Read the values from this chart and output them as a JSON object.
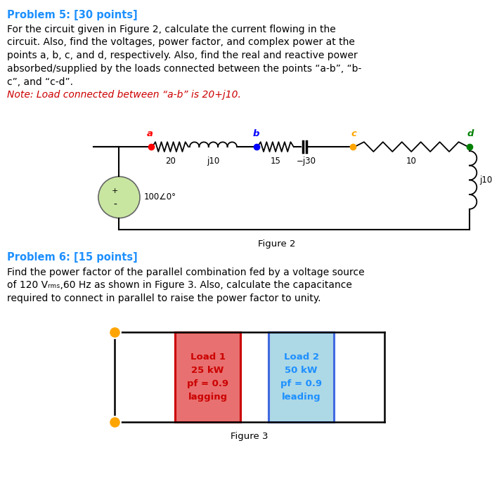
{
  "title_p5": "Problem 5: [30 points]",
  "title_p6": "Problem 6: [15 points]",
  "title_color": "#1E90FF",
  "text_color": "#000000",
  "p5_line1": "For the circuit given in Figure 2, calculate the current flowing in the",
  "p5_line2": "circuit. Also, find the voltages, power factor, and complex power at the",
  "p5_line3": "points a, b, c, and d, respectively. Also, find the real and reactive power",
  "p5_line4": "absorbed/supplied by the loads connected between the points “a-b”, “b-",
  "p5_line5": "c”, and “c-d”.",
  "p5_note": "Note: Load connected between “a-b” is 20+j10.",
  "p6_line1": "Find the power factor of the parallel combination fed by a voltage source",
  "p6_line2": "of 120 Vᵣₘₛ,60 Hz as shown in Figure 3. Also, calculate the capacitance",
  "p6_line3": "required to connect in parallel to raise the power factor to unity.",
  "fig2_caption": "Figure 2",
  "fig3_caption": "Figure 3",
  "circuit2": {
    "source_label": "100∠0°",
    "source_plus": "+",
    "source_minus": "-",
    "node_color_a": "#FF0000",
    "node_color_b": "#0000FF",
    "node_color_c": "#FFA500",
    "node_color_d": "#008000"
  },
  "circuit3": {
    "load1_text": "Load 1\n25 kW\npf = 0.9\nlagging",
    "load2_text": "Load 2\n50 kW\npf = 0.9\nleading",
    "load1_facecolor": "#E87070",
    "load2_facecolor": "#ADD8E6",
    "load1_edgecolor": "#CC0000",
    "load2_edgecolor": "#4169E1",
    "load1_text_color": "#CC0000",
    "load2_text_color": "#1E90FF",
    "node_color": "#FFA500"
  },
  "background_color": "#FFFFFF",
  "font_size_title": 10.5,
  "font_size_body": 10.0,
  "font_size_circuit": 8.5,
  "font_size_node": 9.5
}
